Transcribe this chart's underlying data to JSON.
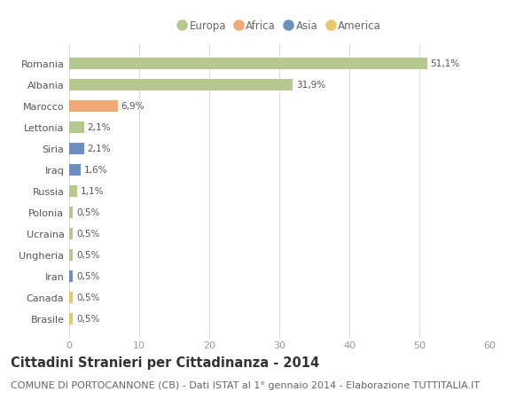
{
  "countries": [
    "Romania",
    "Albania",
    "Marocco",
    "Lettonia",
    "Siria",
    "Iraq",
    "Russia",
    "Polonia",
    "Ucraina",
    "Ungheria",
    "Iran",
    "Canada",
    "Brasile"
  ],
  "values": [
    51.1,
    31.9,
    6.9,
    2.1,
    2.1,
    1.6,
    1.1,
    0.5,
    0.5,
    0.5,
    0.5,
    0.5,
    0.5
  ],
  "labels": [
    "51,1%",
    "31,9%",
    "6,9%",
    "2,1%",
    "2,1%",
    "1,6%",
    "1,1%",
    "0,5%",
    "0,5%",
    "0,5%",
    "0,5%",
    "0,5%",
    "0,5%"
  ],
  "colors": [
    "#b5c98e",
    "#b5c98e",
    "#f0a875",
    "#b5c98e",
    "#6d8fbf",
    "#6d8fbf",
    "#b5c98e",
    "#b5c98e",
    "#b5c98e",
    "#b5c98e",
    "#6d8fbf",
    "#e8c96a",
    "#e8c96a"
  ],
  "legend_labels": [
    "Europa",
    "Africa",
    "Asia",
    "America"
  ],
  "legend_colors": [
    "#b5c98e",
    "#f0a875",
    "#6d8fbf",
    "#e8c96a"
  ],
  "xlim": [
    0,
    60
  ],
  "xticks": [
    0,
    10,
    20,
    30,
    40,
    50,
    60
  ],
  "title": "Cittadini Stranieri per Cittadinanza - 2014",
  "subtitle": "COMUNE DI PORTOCANNONE (CB) - Dati ISTAT al 1° gennaio 2014 - Elaborazione TUTTITALIA.IT",
  "background_color": "#ffffff",
  "grid_color": "#d8d8d8",
  "bar_height": 0.55,
  "title_fontsize": 10.5,
  "subtitle_fontsize": 8,
  "label_fontsize": 7.5,
  "tick_fontsize": 8,
  "legend_fontsize": 8.5
}
